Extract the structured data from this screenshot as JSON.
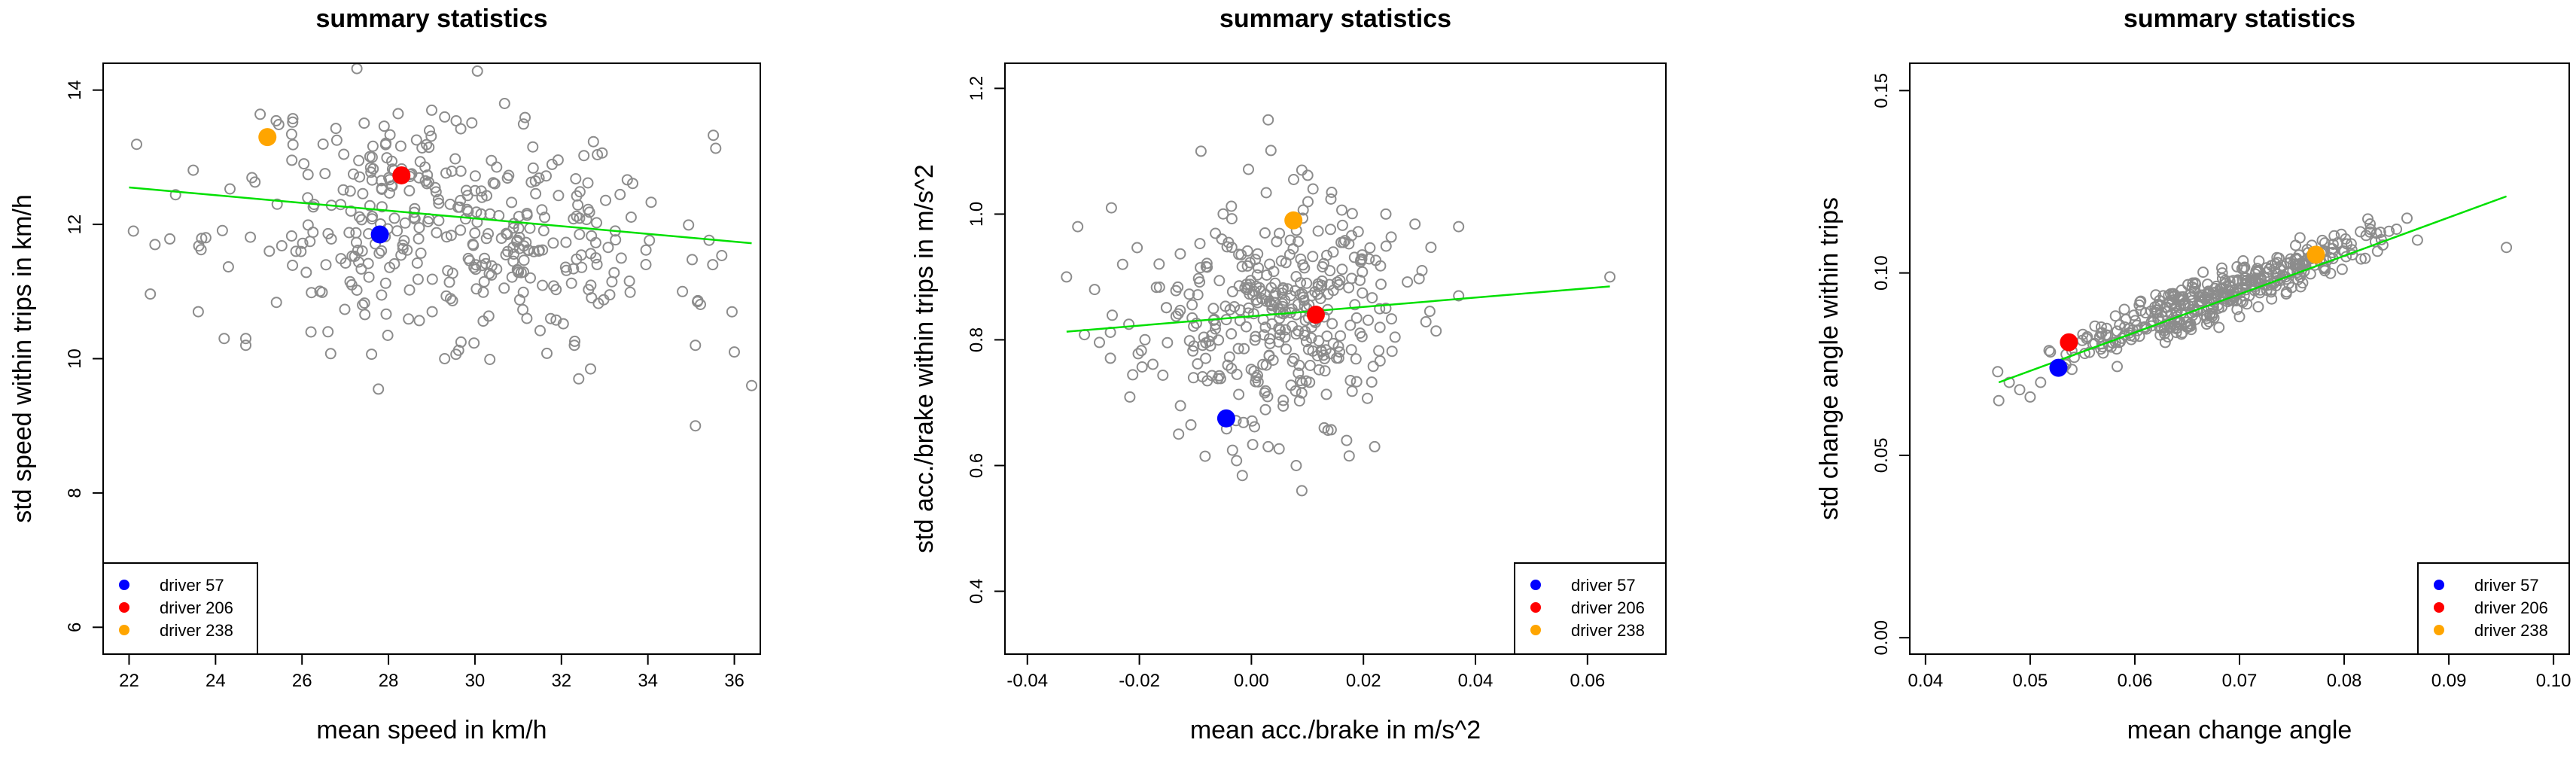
{
  "colors": {
    "points": "#8c8c8c",
    "regression_line": "#00e000",
    "driver_57": "#0000ff",
    "driver_206": "#ff0000",
    "driver_238": "#ffa500"
  },
  "chart_data": [
    {
      "type": "scatter",
      "title": "summary statistics",
      "xlabel": "mean speed in km/h",
      "ylabel": "std speed within trips in km/h",
      "xlim": [
        21.4,
        36.6
      ],
      "ylim": [
        5.6,
        14.4
      ],
      "x_ticks": [
        22,
        24,
        26,
        28,
        30,
        32,
        34,
        36
      ],
      "x_tick_labels": [
        "22",
        "24",
        "26",
        "28",
        "30",
        "32",
        "34",
        "36"
      ],
      "y_ticks": [
        6,
        8,
        10,
        12,
        14
      ],
      "y_tick_labels": [
        "6",
        "8",
        "10",
        "12",
        "14"
      ],
      "cloud": {
        "n": 380,
        "mean_x": 29.5,
        "sd_x": 2.6,
        "mean_y": 12.0,
        "sd_y": 0.85,
        "slope": -0.06,
        "seed": 11
      },
      "fixed_points": [
        [
          22.1,
          11.9
        ],
        [
          22.6,
          11.7
        ],
        [
          23.6,
          10.7
        ],
        [
          24.2,
          10.3
        ],
        [
          24.7,
          10.2
        ],
        [
          24.7,
          10.3
        ],
        [
          35.1,
          9.0
        ],
        [
          35.1,
          10.2
        ],
        [
          36.4,
          9.6
        ],
        [
          36.0,
          10.1
        ],
        [
          35.5,
          11.4
        ],
        [
          34.8,
          11.0
        ],
        [
          29.0,
          13.7
        ],
        [
          29.3,
          13.6
        ],
        [
          26.6,
          10.4
        ],
        [
          27.4,
          10.8
        ],
        [
          29.3,
          10.0
        ],
        [
          31.2,
          10.6
        ],
        [
          32.3,
          10.2
        ],
        [
          32.4,
          9.7
        ]
      ],
      "regression_line": {
        "x": [
          22.0,
          36.4
        ],
        "y": [
          12.55,
          11.72
        ]
      },
      "drivers": [
        {
          "label": "driver 57",
          "x": 27.8,
          "y": 11.85
        },
        {
          "label": "driver 206",
          "x": 28.3,
          "y": 12.73
        },
        {
          "label": "driver 238",
          "x": 25.2,
          "y": 13.3
        }
      ],
      "legend_position": "bottom-left"
    },
    {
      "type": "scatter",
      "title": "summary statistics",
      "xlabel": "mean acc./brake in m/s^2",
      "ylabel": "std acc./brake within trips in m/s^2",
      "xlim": [
        -0.044,
        0.074
      ],
      "ylim": [
        0.3,
        1.24
      ],
      "x_ticks": [
        -0.04,
        -0.02,
        0.0,
        0.02,
        0.04,
        0.06
      ],
      "x_tick_labels": [
        "-0.04",
        "-0.02",
        "0.00",
        "0.02",
        "0.04",
        "0.06"
      ],
      "y_ticks": [
        0.4,
        0.6,
        0.8,
        1.0,
        1.2
      ],
      "y_tick_labels": [
        "0.4",
        "0.6",
        "0.8",
        "1.0",
        "1.2"
      ],
      "cloud": {
        "n": 360,
        "mean_x": 0.004,
        "sd_x": 0.0115,
        "mean_y": 0.84,
        "sd_y": 0.085,
        "slope": 0.7,
        "seed": 23
      },
      "fixed_points": [
        [
          -0.033,
          0.9
        ],
        [
          -0.031,
          0.98
        ],
        [
          -0.028,
          0.88
        ],
        [
          -0.025,
          1.01
        ],
        [
          -0.023,
          0.92
        ],
        [
          -0.009,
          1.1
        ],
        [
          0.003,
          1.15
        ],
        [
          0.009,
          1.07
        ],
        [
          0.011,
          1.04
        ],
        [
          0.024,
          1.0
        ],
        [
          0.037,
          0.98
        ],
        [
          0.064,
          0.9
        ],
        [
          0.037,
          0.87
        ],
        [
          0.022,
          0.63
        ],
        [
          0.017,
          0.64
        ],
        [
          0.009,
          0.56
        ],
        [
          0.003,
          0.63
        ],
        [
          -0.013,
          0.65
        ],
        [
          0.008,
          0.6
        ],
        [
          0.013,
          0.66
        ]
      ],
      "regression_line": {
        "x": [
          -0.033,
          0.064
        ],
        "y": [
          0.813,
          0.885
        ]
      },
      "drivers": [
        {
          "label": "driver 57",
          "x": -0.0045,
          "y": 0.675
        },
        {
          "label": "driver 206",
          "x": 0.0115,
          "y": 0.84
        },
        {
          "label": "driver 238",
          "x": 0.0075,
          "y": 0.99
        }
      ],
      "legend_position": "bottom-right"
    },
    {
      "type": "scatter",
      "title": "summary statistics",
      "xlabel": "mean change angle",
      "ylabel": "std change angle within trips",
      "xlim": [
        0.0385,
        0.1015
      ],
      "ylim": [
        -0.0045,
        0.1575
      ],
      "x_ticks": [
        0.04,
        0.05,
        0.06,
        0.07,
        0.08,
        0.09,
        0.1
      ],
      "x_tick_labels": [
        "0.04",
        "0.05",
        "0.06",
        "0.07",
        "0.08",
        "0.09",
        "0.10"
      ],
      "y_ticks": [
        0.0,
        0.05,
        0.1,
        0.15
      ],
      "y_tick_labels": [
        "0.00",
        "0.05",
        "0.10",
        "0.15"
      ],
      "cloud": {
        "n": 400,
        "mean_x": 0.068,
        "sd_x": 0.0068,
        "mean_y": 0.094,
        "sd_y": 0.0032,
        "slope": 1.06,
        "seed": 37
      },
      "fixed_points": [
        [
          0.047,
          0.065
        ],
        [
          0.048,
          0.07
        ],
        [
          0.049,
          0.068
        ],
        [
          0.05,
          0.066
        ],
        [
          0.051,
          0.07
        ],
        [
          0.0955,
          0.107
        ],
        [
          0.087,
          0.109
        ],
        [
          0.085,
          0.112
        ],
        [
          0.086,
          0.115
        ],
        [
          0.082,
          0.104
        ],
        [
          0.075,
          0.096
        ],
        [
          0.07,
          0.088
        ]
      ],
      "regression_line": {
        "x": [
          0.047,
          0.0955
        ],
        "y": [
          0.07,
          0.121
        ]
      },
      "drivers": [
        {
          "label": "driver 57",
          "x": 0.0527,
          "y": 0.074
        },
        {
          "label": "driver 206",
          "x": 0.0537,
          "y": 0.081
        },
        {
          "label": "driver 238",
          "x": 0.0773,
          "y": 0.105
        }
      ],
      "legend_position": "bottom-right"
    }
  ]
}
